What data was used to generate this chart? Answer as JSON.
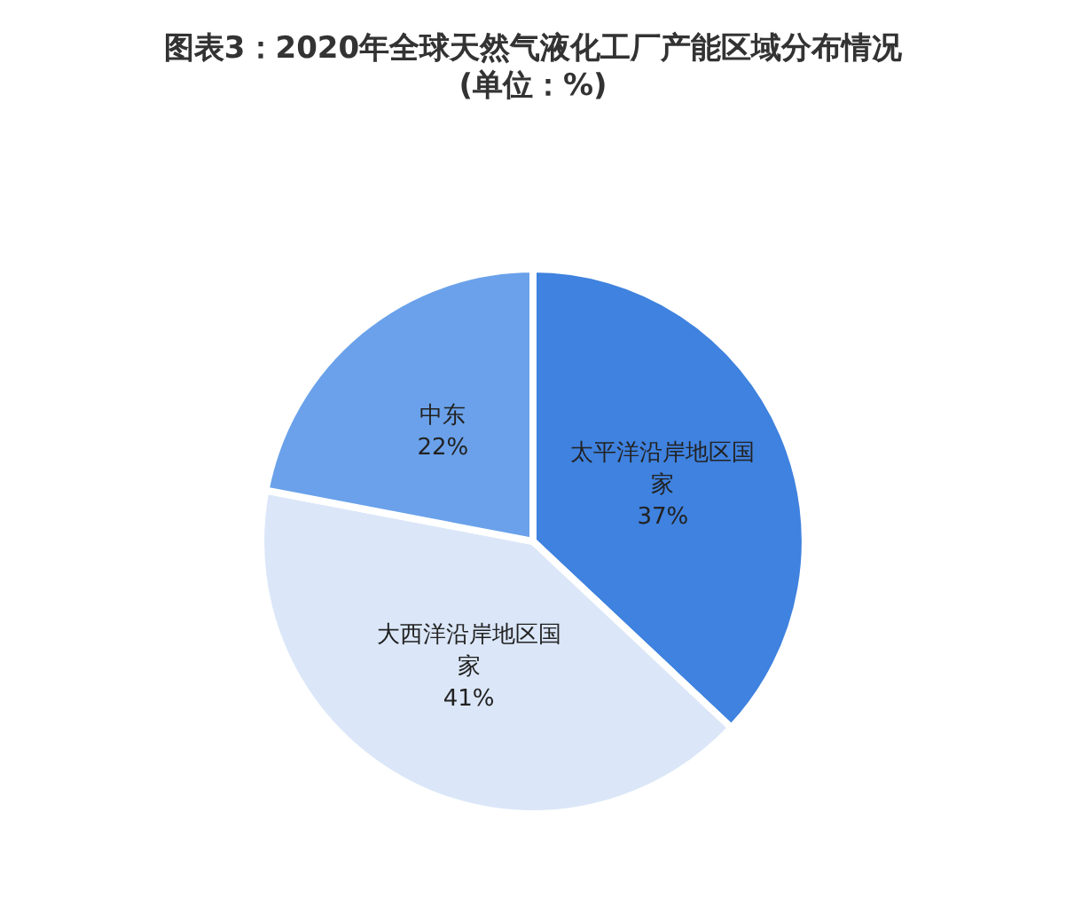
{
  "chart_data": {
    "type": "pie",
    "title": "图表3：2020年全球天然气液化工厂产能区域分布情况",
    "subtitle": "(单位：%)",
    "categories": [
      "太平洋沿岸地区国家",
      "大西洋沿岸地区国家",
      "中东"
    ],
    "values": [
      37,
      41,
      22
    ],
    "colors": [
      "#3f82df",
      "#dbe7f8",
      "#6aa1ea"
    ],
    "value_labels": [
      "37%",
      "41%",
      "22%"
    ],
    "legend": false
  }
}
